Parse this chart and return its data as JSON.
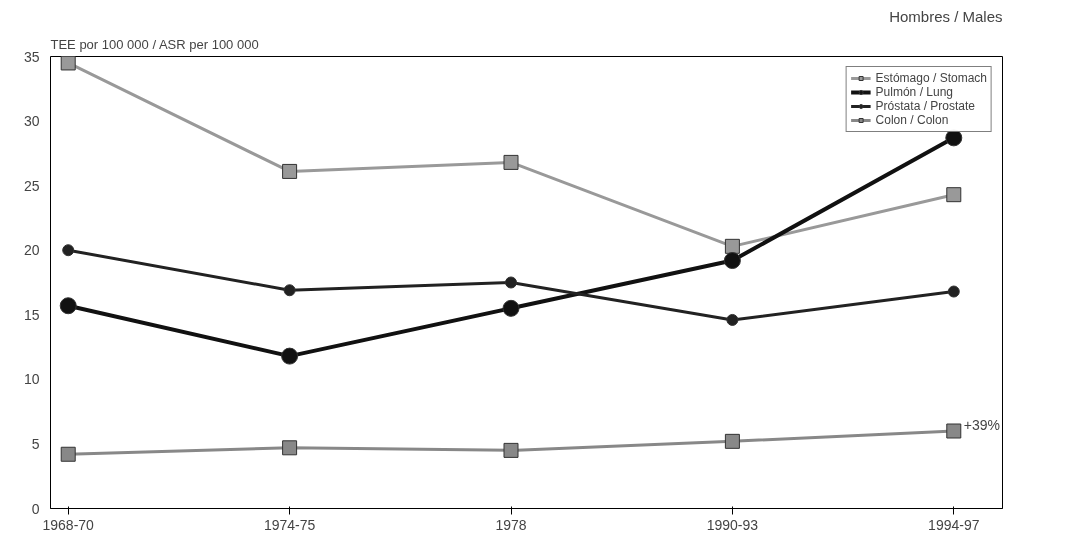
{
  "chart_data": {
    "type": "line",
    "title": "Hombres / Males",
    "ylabel": "TEE por 100 000 / ASR per 100 000",
    "categories": [
      "1968-70",
      "1974-75",
      "1978",
      "1990-93",
      "1994-97"
    ],
    "series": [
      {
        "name": "Estómago / Stomach",
        "color": "#999999",
        "marker": "square",
        "values": [
          34.5,
          26.1,
          26.8,
          20.3,
          24.3
        ]
      },
      {
        "name": "Pulmón / Lung",
        "color": "#111111",
        "marker": "circle",
        "values": [
          15.7,
          11.8,
          15.5,
          19.2,
          28.7
        ]
      },
      {
        "name": "Próstata / Prostate",
        "color": "#222222",
        "marker": "circle",
        "values": [
          20.0,
          16.9,
          17.5,
          14.6,
          16.8
        ]
      },
      {
        "name": "Colon / Colon",
        "color": "#888888",
        "marker": "square",
        "values": [
          4.2,
          4.7,
          4.5,
          5.2,
          6.0
        ]
      }
    ],
    "ylim": [
      0,
      35
    ],
    "yticks": [
      0,
      5,
      10,
      15,
      20,
      25,
      30,
      35
    ],
    "grid": false,
    "legend": "top right",
    "annotations": [
      {
        "text": "+39%",
        "x": "1994-97",
        "y": 6.0
      }
    ]
  }
}
